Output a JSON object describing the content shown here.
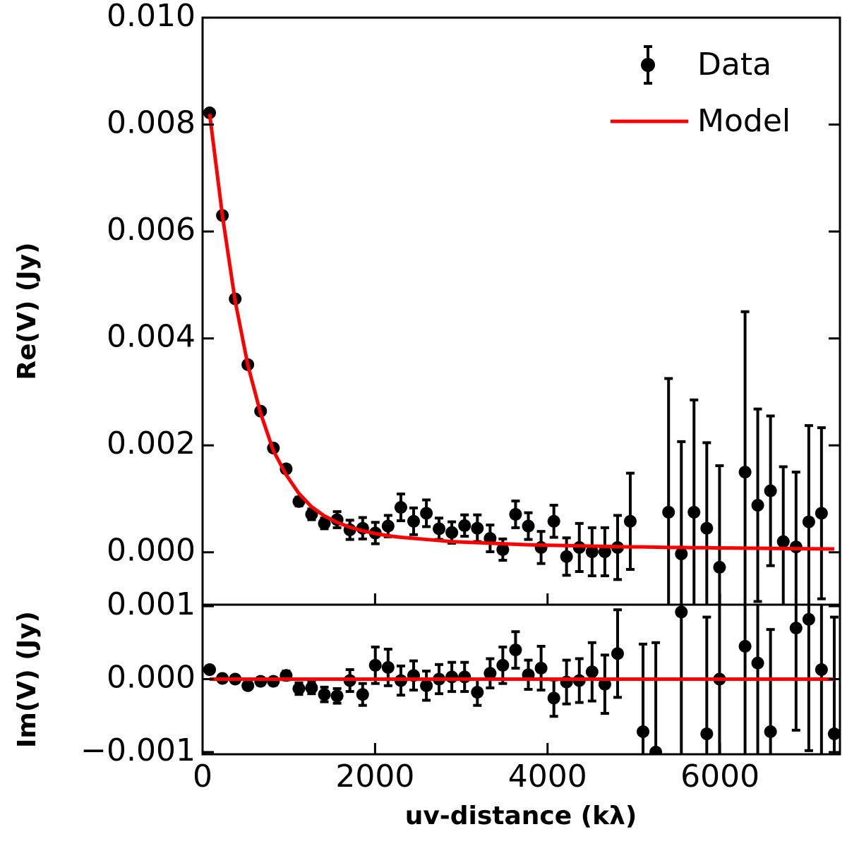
{
  "chart_data": [
    {
      "type": "errorbar",
      "ylabel": "Re(V) (Jy)",
      "xlim": [
        0,
        7390
      ],
      "ylim": [
        -0.00098,
        0.01
      ],
      "yticks": [
        {
          "value": 0,
          "label": "0.000"
        },
        {
          "value": 0.002,
          "label": "0.002"
        },
        {
          "value": 0.004,
          "label": "0.004"
        },
        {
          "value": 0.006,
          "label": "0.006"
        },
        {
          "value": 0.008,
          "label": "0.008"
        },
        {
          "value": 0.01,
          "label": "0.010"
        }
      ],
      "x": [
        82,
        230,
        378,
        525,
        673,
        821,
        969,
        1117,
        1264,
        1412,
        1560,
        1708,
        1856,
        2003,
        2151,
        2299,
        2447,
        2595,
        2742,
        2890,
        3038,
        3186,
        3334,
        3481,
        3629,
        3777,
        3925,
        4073,
        4220,
        4368,
        4516,
        4664,
        4812,
        4959,
        5107,
        5255,
        5403,
        5551,
        5698,
        5846,
        5994,
        6142,
        6290,
        6437,
        6585,
        6733,
        6881,
        7029,
        7176,
        7324
      ],
      "legend": "upper right",
      "series": [
        {
          "name": "Data",
          "color": "#000000",
          "values": [
            0.00822,
            0.0063,
            0.00474,
            0.00351,
            0.00264,
            0.00195,
            0.00156,
            0.00095,
            0.00071,
            0.00054,
            0.00061,
            0.00042,
            0.00045,
            0.00036,
            0.00049,
            0.00084,
            0.00058,
            0.00073,
            0.00044,
            0.00037,
            0.0005,
            0.00045,
            0.00026,
            5e-05,
            0.00071,
            0.00049,
            9e-05,
            0.00058,
            -8e-05,
            9e-05,
            1e-05,
            1e-05,
            9e-05,
            0.00058,
            null,
            null,
            0.00075,
            -3e-05,
            0.00075,
            0.00045,
            -0.00028,
            null,
            0.0015,
            0.00088,
            0.00115,
            0.0002,
            0.0001,
            0.00057,
            0.00073,
            null
          ],
          "errors": [
            5e-05,
            5e-05,
            5e-05,
            5e-05,
            5e-05,
            6e-05,
            7e-05,
            8e-05,
            0.0001,
            0.0001,
            0.00015,
            0.00018,
            0.0002,
            0.0002,
            0.0002,
            0.00025,
            0.00025,
            0.00025,
            0.0002,
            0.0002,
            0.0002,
            0.00025,
            0.00025,
            0.0002,
            0.00025,
            0.00025,
            0.0003,
            0.0003,
            0.00035,
            0.00045,
            0.00045,
            0.00045,
            0.0006,
            0.0009,
            null,
            null,
            0.0025,
            0.0021,
            0.0021,
            0.0016,
            0.0019,
            null,
            0.003,
            0.0018,
            0.0014,
            0.0014,
            0.0014,
            0.0018,
            0.0016,
            null
          ]
        },
        {
          "name": "Model",
          "color": "#ff0000",
          "values": [
            0.0082,
            0.0063,
            0.0047,
            0.0035,
            0.0026,
            0.0019,
            0.00145,
            0.0011,
            0.00085,
            0.00068,
            0.00056,
            0.00047,
            0.0004,
            0.00035,
            0.00031,
            0.00028,
            0.00026,
            0.00024,
            0.00022,
            0.0002,
            0.00019,
            0.00018,
            0.00017,
            0.00016,
            0.00015,
            0.00014,
            0.000135,
            0.00013,
            0.000125,
            0.00012,
            0.000115,
            0.00011,
            0.000105,
            0.0001,
            0.0001,
            9.5e-05,
            9e-05,
            9e-05,
            8.5e-05,
            8.5e-05,
            8e-05,
            8e-05,
            7.8e-05,
            7.5e-05,
            7.2e-05,
            7e-05,
            6.8e-05,
            6.6e-05,
            6.4e-05,
            6.2e-05
          ]
        }
      ]
    },
    {
      "type": "errorbar",
      "ylabel": "Im(V) (Jy)",
      "xlabel": "uv-distance (kλ)",
      "xlim": [
        0,
        7390
      ],
      "ylim": [
        -0.00103,
        0.00102
      ],
      "xticks": [
        0,
        2000,
        4000,
        6000
      ],
      "yticks": [
        {
          "value": -0.001,
          "label": "−0.001"
        },
        {
          "value": 0,
          "label": "0.000"
        },
        {
          "value": 0.001,
          "label": "0.001"
        }
      ],
      "x": [
        82,
        230,
        378,
        525,
        673,
        821,
        969,
        1117,
        1264,
        1412,
        1560,
        1708,
        1856,
        2003,
        2151,
        2299,
        2447,
        2595,
        2742,
        2890,
        3038,
        3186,
        3334,
        3481,
        3629,
        3777,
        3925,
        4073,
        4220,
        4368,
        4516,
        4664,
        4812,
        4959,
        5107,
        5255,
        5403,
        5551,
        5698,
        5846,
        5994,
        6142,
        6290,
        6437,
        6585,
        6733,
        6881,
        7029,
        7176,
        7324
      ],
      "series": [
        {
          "color": "#000000",
          "values": [
            0.00013,
            1e-05,
            0,
            -9e-05,
            -3e-05,
            -3e-05,
            5e-05,
            -0.00013,
            -0.00012,
            -0.00021,
            -0.00023,
            -2e-05,
            -0.00021,
            0.00019,
            0.00016,
            -2e-05,
            5e-05,
            -9e-05,
            0,
            3e-05,
            3e-05,
            -0.00018,
            8e-05,
            0.00019,
            0.0004,
            6e-05,
            0.00015,
            -0.00026,
            -4e-05,
            -2e-05,
            0.0001,
            -7e-05,
            0.00035,
            null,
            -0.00072,
            -0.001,
            null,
            0.00092,
            null,
            -0.00075,
            0,
            null,
            0.00045,
            0.00022,
            -0.00072,
            null,
            0.0007,
            0.00082,
            0.00013,
            -0.00075
          ],
          "errors": [
            5e-05,
            4e-05,
            4e-05,
            5e-05,
            5e-05,
            5e-05,
            6e-05,
            8e-05,
            8e-05,
            0.0001,
            0.0001,
            0.00015,
            0.00015,
            0.00025,
            0.00025,
            0.0002,
            0.0002,
            0.0002,
            0.0002,
            0.0002,
            0.0002,
            0.00018,
            0.0002,
            0.00025,
            0.00025,
            0.0002,
            0.0003,
            0.00025,
            0.0003,
            0.0003,
            0.0004,
            0.0004,
            0.0006,
            null,
            0.0012,
            0.0015,
            null,
            0.0025,
            null,
            0.0016,
            0.002,
            null,
            0.003,
            0.0018,
            0.0014,
            null,
            0.0014,
            0.0018,
            0.0016,
            0.0016
          ]
        },
        {
          "color": "#ff0000",
          "values": [
            0,
            0,
            0,
            0,
            0,
            0,
            0,
            0,
            0,
            0,
            0,
            0,
            0,
            0,
            0,
            0,
            0,
            0,
            0,
            0,
            0,
            0,
            0,
            0,
            0,
            0,
            0,
            0,
            0,
            0,
            0,
            0,
            0,
            0,
            0,
            0,
            0,
            0,
            0,
            0,
            0,
            0,
            0,
            0,
            0,
            0,
            0,
            0,
            0,
            0
          ]
        }
      ]
    }
  ]
}
